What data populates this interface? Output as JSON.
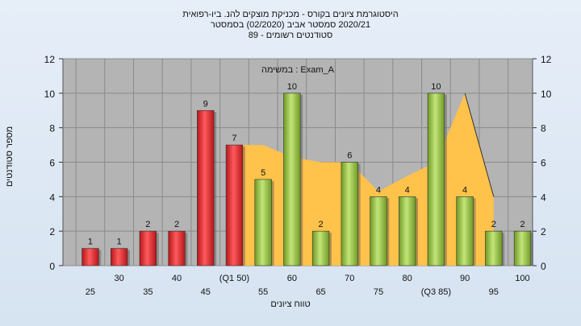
{
  "header": {
    "line1": "היסטוגרמת ציונים בקורס - מכניקת מוצקים להנ. ביו-רפואית",
    "line2": "2020/21 סמסטר אביב  (02/2020)  בסמסטר",
    "line3": "סטודנטים רשומים - 89"
  },
  "chart_data": {
    "type": "bar",
    "title": "במשימה : Exam_A",
    "xlabel": "טווח ציונים",
    "ylabel": "מספר סטודנטים",
    "ylim": [
      0,
      12
    ],
    "yticks": [
      "0",
      "2",
      "4",
      "6",
      "8",
      "10",
      "12"
    ],
    "categories": [
      "25",
      "30",
      "35",
      "40",
      "45",
      "(Q1 50)",
      "55",
      "60",
      "65",
      "70",
      "75",
      "80",
      "(Q3 85)",
      "90",
      "95",
      "100"
    ],
    "values": [
      1,
      1,
      2,
      2,
      9,
      7,
      5,
      10,
      2,
      6,
      4,
      4,
      10,
      4,
      2,
      2
    ],
    "value_labels": [
      "1",
      "1",
      "2",
      "2",
      "9",
      "7",
      "5",
      "10",
      "2",
      "6",
      "4",
      "4",
      "10",
      "4",
      "2",
      "2"
    ],
    "bar_colors": [
      "#e8272c",
      "#e8272c",
      "#e8272c",
      "#e8272c",
      "#e8272c",
      "#e8272c",
      "#8fbf3a",
      "#8fbf3a",
      "#8fbf3a",
      "#8fbf3a",
      "#8fbf3a",
      "#8fbf3a",
      "#8fbf3a",
      "#8fbf3a",
      "#8fbf3a",
      "#8fbf3a"
    ],
    "area_values": [
      null,
      null,
      null,
      null,
      null,
      7,
      7,
      6.3,
      6,
      6,
      4.3,
      5.2,
      6,
      10,
      4,
      null
    ],
    "area_color": "#ffc24a",
    "grid": true,
    "plot_background": "#b4b4b4"
  }
}
